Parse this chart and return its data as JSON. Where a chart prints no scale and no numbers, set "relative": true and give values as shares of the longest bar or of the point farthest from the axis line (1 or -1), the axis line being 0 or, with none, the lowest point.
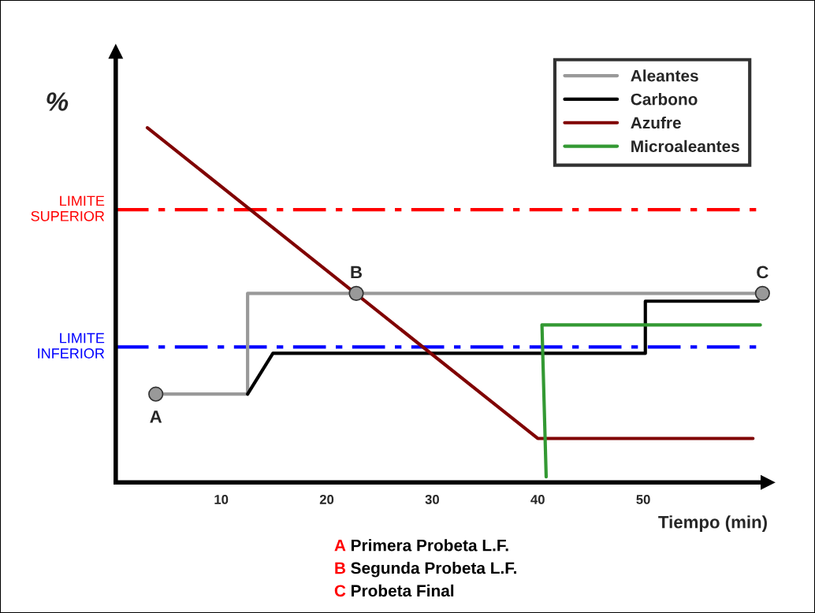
{
  "chart_data": {
    "type": "line",
    "relative": true,
    "ylabel": "%",
    "xlabel": "Tiempo (min)",
    "xlim": [
      0,
      61.8
    ],
    "xticks": [
      10,
      20,
      30,
      40,
      50
    ],
    "grid": false,
    "legend": "top right",
    "marker": "none",
    "line_style": "solid",
    "series": [
      {
        "name": "Aleantes",
        "color": "#999999",
        "x": [
          3.8,
          12.5,
          12.5,
          61.3
        ],
        "values": [
          0.249,
          0.249,
          0.533,
          0.533
        ]
      },
      {
        "name": "Carbono",
        "color": "#000000",
        "x": [
          12.5,
          14.9,
          50.2,
          50.2,
          60.9
        ],
        "values": [
          0.249,
          0.364,
          0.364,
          0.511,
          0.511
        ]
      },
      {
        "name": "Azufre",
        "color": "#800000",
        "x": [
          3.0,
          40.0,
          60.4
        ],
        "values": [
          1.0,
          0.124,
          0.124
        ]
      },
      {
        "name": "Microaleantes",
        "color": "#339933",
        "x": [
          40.8,
          40.4,
          61.1
        ],
        "values": [
          0.016,
          0.444,
          0.444
        ]
      },
      {
        "type": "scatter",
        "color": "#999999",
        "marker": "circle",
        "x": [
          3.8,
          22.8,
          61.3
        ],
        "values": [
          0.249,
          0.533,
          0.533
        ]
      }
    ],
    "ref_lines": [
      {
        "axis": "y",
        "value": 0.769,
        "label": "LIMITE\nSUPERIOR",
        "color": "#ff0000",
        "line_style": "dashdot"
      },
      {
        "axis": "y",
        "value": 0.382,
        "label": "LIMITE\nINFERIOR",
        "color": "#0000ff",
        "line_style": "dashdot"
      }
    ],
    "annotations": [
      {
        "text": "A",
        "x": 3.8,
        "y": 0.249
      },
      {
        "text": "B",
        "x": 22.8,
        "y": 0.533
      },
      {
        "text": "C",
        "x": 61.3,
        "y": 0.533
      },
      "A  Primera Probeta L.F.",
      "B  Segunda Probeta L.F.",
      "C  Probeta Final"
    ]
  }
}
